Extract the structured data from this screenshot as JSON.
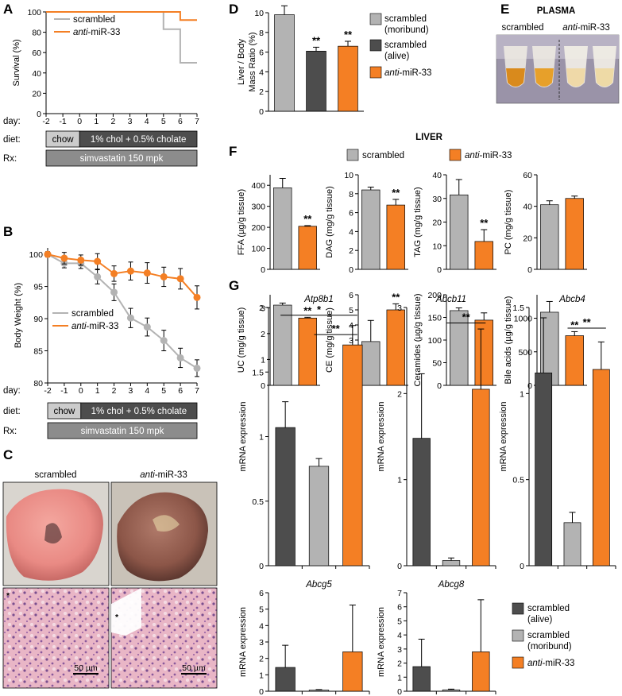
{
  "colors": {
    "gray": "#b3b3b3",
    "dark": "#4d4d4d",
    "orange": "#f47f24",
    "chow_box": "#cccccc",
    "diet_box": "#4d4d4d",
    "rx_box": "#8c8c8c"
  },
  "panels": {
    "A": "A",
    "B": "B",
    "C": "C",
    "D": "D",
    "E": "E",
    "F": "F",
    "G": "G"
  },
  "timeline": {
    "day_label": "day:",
    "diet_label": "diet:",
    "rx_label": "Rx:",
    "chow": "chow",
    "diet": "1% chol + 0.5% cholate",
    "rx": "simvastatin 150 mpk"
  },
  "panel_c": {
    "scrambled": "scrambled",
    "anti_prefix": "anti",
    "anti_suffix": "-miR-33",
    "scale": "50 µm",
    "asterisk": "*"
  },
  "panel_e": {
    "title": "PLASMA",
    "scrambled": "scrambled",
    "anti_prefix": "anti",
    "anti_suffix": "-miR-33"
  },
  "panel_f": {
    "title": "LIVER"
  },
  "legend_common": {
    "scrambled": "scrambled",
    "anti_prefix": "anti",
    "anti_suffix": "-miR-33",
    "moribund_line1": "scrambled",
    "moribund_line2": "(moribund)",
    "alive_line1": "scrambled",
    "alive_line2": "(alive)"
  },
  "chart_data": [
    {
      "id": "A",
      "type": "line",
      "ylabel": "Survival (%)",
      "x": [
        -2,
        -1,
        0,
        1,
        2,
        3,
        4,
        5,
        6,
        7
      ],
      "xticks": [
        "-2",
        "-1",
        "0",
        "1",
        "2",
        "3",
        "4",
        "5",
        "6",
        "7"
      ],
      "ylim": [
        0,
        100
      ],
      "yticks": [
        0,
        20,
        40,
        60,
        80,
        100
      ],
      "series": [
        {
          "name": "scrambled",
          "color": "gray",
          "values": [
            100,
            100,
            100,
            100,
            100,
            100,
            100,
            83,
            50,
            50
          ]
        },
        {
          "name": "anti-miR-33",
          "color": "orange",
          "values": [
            100,
            100,
            100,
            100,
            100,
            100,
            100,
            100,
            92,
            92
          ]
        }
      ]
    },
    {
      "id": "B",
      "type": "line",
      "ylabel": "Body Weight (%)",
      "x": [
        -2,
        -1,
        0,
        1,
        2,
        3,
        4,
        5,
        6,
        7
      ],
      "xticks": [
        "-2",
        "-1",
        "0",
        "1",
        "2",
        "3",
        "4",
        "5",
        "6",
        "7"
      ],
      "ylim": [
        80,
        101
      ],
      "yticks": [
        80,
        85,
        90,
        95,
        100
      ],
      "series": [
        {
          "name": "scrambled",
          "color": "gray",
          "values": [
            100,
            98.6,
            98.6,
            96.5,
            94.1,
            90.1,
            88.7,
            86.6,
            83.9,
            82.3
          ],
          "errors": [
            0.4,
            0.7,
            0.8,
            1.1,
            1.3,
            1.5,
            1.4,
            1.6,
            1.5,
            1.3
          ]
        },
        {
          "name": "anti-miR-33",
          "color": "orange",
          "values": [
            100,
            99.4,
            99.1,
            98.9,
            97.0,
            97.4,
            97.1,
            96.5,
            96.2,
            93.3
          ],
          "errors": [
            0.4,
            0.9,
            0.8,
            1.2,
            1.2,
            1.4,
            1.6,
            1.5,
            1.6,
            1.8
          ]
        }
      ]
    },
    {
      "id": "D",
      "type": "bar",
      "ylabel_line1": "Liver / Body",
      "ylabel_line2": "Mass Ratio (%)",
      "ylim": [
        0,
        10
      ],
      "yticks": [
        0,
        2,
        4,
        6,
        8,
        10
      ],
      "categories": [
        "scrambled (moribund)",
        "scrambled (alive)",
        "anti-miR-33"
      ],
      "colors": [
        "gray",
        "dark",
        "orange"
      ],
      "values": [
        9.8,
        6.1,
        6.6
      ],
      "errors": [
        0.9,
        0.4,
        0.5
      ],
      "sig": [
        "",
        "**",
        "**"
      ]
    },
    {
      "id": "F1",
      "type": "bar",
      "ylabel": "FFA (µg/g tissue)",
      "ylim": [
        0,
        450
      ],
      "yticks": [
        0,
        100,
        200,
        300,
        400
      ],
      "values": [
        388,
        205
      ],
      "errors": [
        45,
        3
      ],
      "colors": [
        "gray",
        "orange"
      ],
      "sig": [
        "",
        "**"
      ]
    },
    {
      "id": "F2",
      "type": "bar",
      "ylabel": "DAG (mg/g tissue)",
      "ylim": [
        0,
        10
      ],
      "yticks": [
        0,
        2,
        4,
        6,
        8,
        10
      ],
      "values": [
        8.4,
        6.8
      ],
      "errors": [
        0.3,
        0.6
      ],
      "colors": [
        "gray",
        "orange"
      ],
      "sig": [
        "",
        "**"
      ]
    },
    {
      "id": "F3",
      "type": "bar",
      "ylabel": "TAG (mg/g tissue)",
      "ylim": [
        0,
        40
      ],
      "yticks": [
        0,
        10,
        20,
        30,
        40
      ],
      "values": [
        31.5,
        11.8
      ],
      "errors": [
        6.5,
        5
      ],
      "colors": [
        "gray",
        "orange"
      ],
      "sig": [
        "",
        "**"
      ]
    },
    {
      "id": "F4",
      "type": "bar",
      "ylabel": "PC (mg/g tissue)",
      "ylim": [
        0,
        60
      ],
      "yticks": [
        0,
        20,
        40,
        60
      ],
      "values": [
        41,
        45
      ],
      "errors": [
        2.5,
        1.5
      ],
      "colors": [
        "gray",
        "orange"
      ],
      "sig": [
        "",
        ""
      ]
    },
    {
      "id": "F5",
      "type": "bar",
      "ylabel": "UC (mg/g tissue)",
      "ylim": [
        0,
        3.5
      ],
      "yticks": [
        0,
        1,
        2,
        3
      ],
      "values": [
        3.1,
        2.6
      ],
      "errors": [
        0.08,
        0.03
      ],
      "colors": [
        "gray",
        "orange"
      ],
      "sig": [
        "",
        "**"
      ]
    },
    {
      "id": "F6",
      "type": "bar",
      "ylabel": "CE (mg/g tissue)",
      "ylim": [
        0,
        6
      ],
      "yticks": [
        0,
        1,
        2,
        3,
        4,
        5,
        6
      ],
      "values": [
        2.9,
        5.0
      ],
      "errors": [
        1.4,
        0.4
      ],
      "colors": [
        "gray",
        "orange"
      ],
      "sig": [
        "",
        "**"
      ]
    },
    {
      "id": "F7",
      "type": "bar",
      "ylabel": "Ceramides (µg/g tissue)",
      "ylim": [
        0,
        200
      ],
      "yticks": [
        0,
        50,
        100,
        150,
        200
      ],
      "values": [
        165,
        144
      ],
      "errors": [
        6,
        16
      ],
      "colors": [
        "gray",
        "orange"
      ],
      "sig": [
        "",
        ""
      ]
    },
    {
      "id": "F8",
      "type": "bar",
      "ylabel": "Bile acids (µg/g tissue)",
      "ylim": [
        0,
        1350
      ],
      "yticks": [
        0,
        500,
        1000
      ],
      "values": [
        1090,
        740
      ],
      "errors": [
        160,
        60
      ],
      "colors": [
        "gray",
        "orange"
      ],
      "sig": [
        "",
        "**"
      ]
    },
    {
      "id": "G1",
      "type": "bar",
      "title": "Atp8b1",
      "ylabel": "mRNA expression",
      "ylim": [
        0,
        2
      ],
      "yticks": [
        0,
        0.5,
        1,
        1.5,
        2
      ],
      "yticklabels": [
        "0",
        "0.5",
        "1",
        "1.5",
        "2"
      ],
      "values": [
        1.07,
        0.77,
        1.71
      ],
      "errors": [
        0.2,
        0.06,
        0.15
      ],
      "colors": [
        "dark",
        "gray",
        "orange"
      ],
      "brackets": [
        {
          "from": 0,
          "to": 2,
          "label": "*",
          "level": 1.94
        },
        {
          "from": 1,
          "to": 2,
          "label": "**",
          "level": 1.79
        }
      ]
    },
    {
      "id": "G2",
      "type": "bar",
      "title": "Abcb11",
      "ylabel": "mRNA expression",
      "ylim": [
        0,
        3
      ],
      "yticks": [
        0,
        1,
        2,
        3
      ],
      "yticklabels": [
        "0",
        "1",
        "2",
        "3"
      ],
      "values": [
        1.48,
        0.06,
        2.05
      ],
      "errors": [
        0.75,
        0.03,
        0.7
      ],
      "colors": [
        "dark",
        "gray",
        "orange"
      ],
      "brackets": [
        {
          "from": 1,
          "to": 2,
          "label": "**",
          "level": 2.82
        }
      ]
    },
    {
      "id": "G3",
      "type": "bar",
      "title": "Abcb4",
      "ylabel": "mRNA expression",
      "ylim": [
        0,
        1.5
      ],
      "yticks": [
        0,
        0.5,
        1,
        1.5
      ],
      "yticklabels": [
        "0",
        "0.5",
        "1",
        "1.5"
      ],
      "values": [
        1.12,
        0.25,
        1.14
      ],
      "errors": [
        0.32,
        0.06,
        0.16
      ],
      "colors": [
        "dark",
        "gray",
        "orange"
      ],
      "brackets": [
        {
          "from": 1,
          "to": 2,
          "label": "**",
          "level": 1.38
        }
      ]
    },
    {
      "id": "G4",
      "type": "bar",
      "title": "Abcg5",
      "ylabel": "mRNA expression",
      "ylim": [
        0,
        6
      ],
      "yticks": [
        0,
        1,
        2,
        3,
        4,
        5,
        6
      ],
      "yticklabels": [
        "0",
        "1",
        "2",
        "3",
        "4",
        "5",
        "6"
      ],
      "values": [
        1.45,
        0.07,
        2.4
      ],
      "errors": [
        1.35,
        0.03,
        2.85
      ],
      "colors": [
        "dark",
        "gray",
        "orange"
      ],
      "brackets": []
    },
    {
      "id": "G5",
      "type": "bar",
      "title": "Abcg8",
      "ylabel": "mRNA expression",
      "ylim": [
        0,
        7
      ],
      "yticks": [
        0,
        1,
        2,
        3,
        4,
        5,
        6,
        7
      ],
      "yticklabels": [
        "0",
        "1",
        "2",
        "3",
        "4",
        "5",
        "6",
        "7"
      ],
      "values": [
        1.75,
        0.1,
        2.8
      ],
      "errors": [
        1.95,
        0.05,
        3.7
      ],
      "colors": [
        "dark",
        "gray",
        "orange"
      ],
      "brackets": []
    }
  ]
}
